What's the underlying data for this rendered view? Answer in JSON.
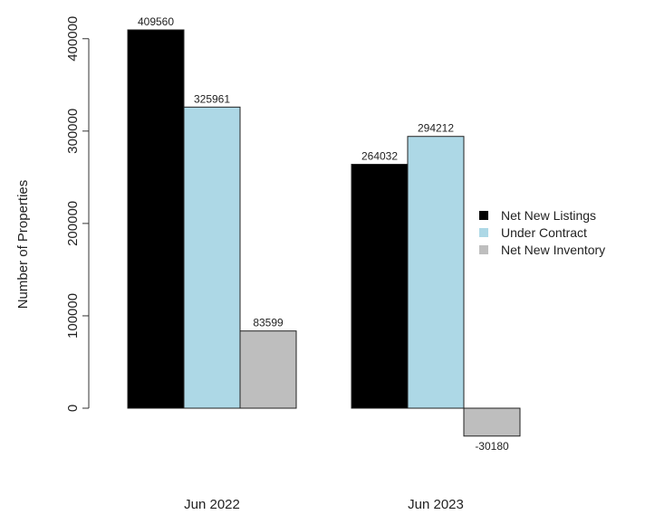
{
  "chart_data": {
    "type": "bar",
    "title": "",
    "xlabel": "",
    "ylabel": "Number of Properties",
    "categories": [
      "Jun 2022",
      "Jun 2023"
    ],
    "series": [
      {
        "name": "Net New Listings",
        "values": [
          409560,
          264032
        ],
        "color": "#000000"
      },
      {
        "name": "Under Contract",
        "values": [
          325961,
          294212
        ],
        "color": "#add8e6"
      },
      {
        "name": "Net New Inventory",
        "values": [
          83599,
          -30180
        ],
        "color": "#bebebe"
      }
    ],
    "ylim": [
      -30180,
      409560
    ],
    "yticks": [
      0,
      100000,
      200000,
      300000,
      400000
    ],
    "ytick_labels": [
      "0",
      "100000",
      "200000",
      "300000",
      "400000"
    ],
    "data_labels": [
      [
        "409560",
        "264032"
      ],
      [
        "325961",
        "294212"
      ],
      [
        "83599",
        "-30180"
      ]
    ],
    "legend_position": "right",
    "grid": false
  }
}
